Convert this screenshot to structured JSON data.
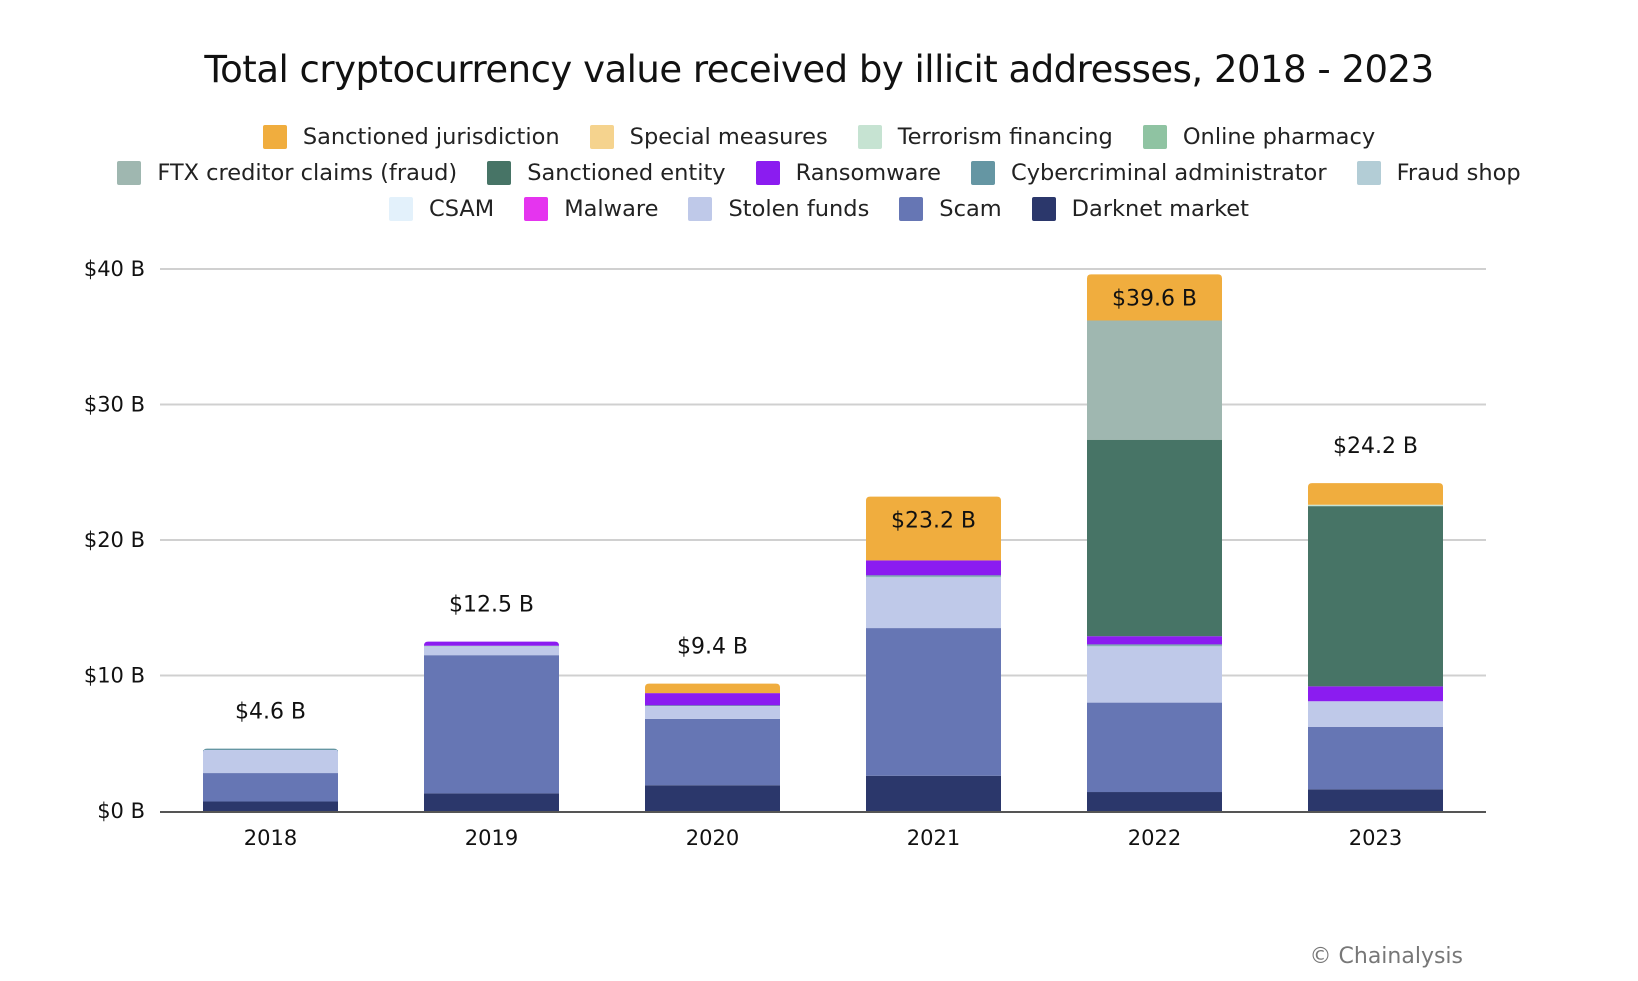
{
  "chart_data": {
    "type": "bar",
    "stacked": true,
    "title": "Total cryptocurrency value received by illicit addresses, 2018 - 2023",
    "xlabel": "",
    "ylabel": "",
    "ylim": [
      0,
      40
    ],
    "yticks": [
      0,
      10,
      20,
      30,
      40
    ],
    "ytick_labels": [
      "$0 B",
      "$10 B",
      "$20 B",
      "$30 B",
      "$40 B"
    ],
    "grid": true,
    "legend_position": "top",
    "categories": [
      "2018",
      "2019",
      "2020",
      "2021",
      "2022",
      "2023"
    ],
    "totals": [
      4.6,
      12.5,
      9.4,
      23.2,
      39.6,
      24.2
    ],
    "total_labels": [
      "$4.6 B",
      "$12.5 B",
      "$9.4 B",
      "$23.2 B",
      "$39.6 B",
      "$24.2 B"
    ],
    "legend_order": [
      "Sanctioned jurisdiction",
      "Special measures",
      "Terrorism financing",
      "Online pharmacy",
      "FTX creditor claims (fraud)",
      "Sanctioned entity",
      "Ransomware",
      "Cybercriminal administrator",
      "Fraud shop",
      "CSAM",
      "Malware",
      "Stolen funds",
      "Scam",
      "Darknet market"
    ],
    "legend_rows": [
      [
        "Sanctioned jurisdiction",
        "Special measures",
        "Terrorism financing",
        "Online pharmacy"
      ],
      [
        "FTX creditor claims (fraud)",
        "Sanctioned entity",
        "Ransomware",
        "Cybercriminal administrator",
        "Fraud shop"
      ],
      [
        "CSAM",
        "Malware",
        "Stolen funds",
        "Scam",
        "Darknet market"
      ]
    ],
    "series": [
      {
        "name": "Darknet market",
        "color": "#2b376b",
        "values": [
          0.7,
          1.3,
          1.9,
          2.6,
          1.4,
          1.6
        ]
      },
      {
        "name": "Scam",
        "color": "#6676b4",
        "values": [
          2.1,
          10.2,
          4.9,
          10.9,
          6.6,
          4.6
        ]
      },
      {
        "name": "Stolen funds",
        "color": "#bfc9e9",
        "values": [
          1.7,
          0.6,
          0.9,
          3.7,
          4.1,
          1.9
        ]
      },
      {
        "name": "Malware",
        "color": "#e534ef",
        "values": [
          0.0,
          0.0,
          0.0,
          0.0,
          0.0,
          0.0
        ]
      },
      {
        "name": "CSAM",
        "color": "#e3f1fb",
        "values": [
          0.0,
          0.0,
          0.0,
          0.0,
          0.0,
          0.0
        ]
      },
      {
        "name": "Fraud shop",
        "color": "#b3cdd6",
        "values": [
          0.0,
          0.1,
          0.05,
          0.1,
          0.1,
          0.0
        ]
      },
      {
        "name": "Cybercriminal administrator",
        "color": "#6596a3",
        "values": [
          0.1,
          0.0,
          0.05,
          0.1,
          0.1,
          0.0
        ]
      },
      {
        "name": "Ransomware",
        "color": "#8b1cf0",
        "values": [
          0.0,
          0.3,
          0.9,
          1.1,
          0.6,
          1.1
        ]
      },
      {
        "name": "Sanctioned entity",
        "color": "#477466",
        "values": [
          0.0,
          0.0,
          0.0,
          0.0,
          14.5,
          13.3
        ]
      },
      {
        "name": "FTX creditor claims (fraud)",
        "color": "#9fb7b0",
        "values": [
          0.0,
          0.0,
          0.0,
          0.0,
          8.8,
          0.0
        ]
      },
      {
        "name": "Online pharmacy",
        "color": "#8fc3a2",
        "values": [
          0.0,
          0.0,
          0.0,
          0.0,
          0.0,
          0.0
        ]
      },
      {
        "name": "Terrorism financing",
        "color": "#c6e3d2",
        "values": [
          0.0,
          0.0,
          0.0,
          0.0,
          0.0,
          0.1
        ]
      },
      {
        "name": "Special measures",
        "color": "#f5d38e",
        "values": [
          0.0,
          0.0,
          0.0,
          0.0,
          0.0,
          0.0
        ]
      },
      {
        "name": "Sanctioned jurisdiction",
        "color": "#f0ad3e",
        "values": [
          0.0,
          0.0,
          0.7,
          4.7,
          3.4,
          1.6
        ]
      }
    ],
    "total_label_inside_bar": [
      false,
      false,
      false,
      true,
      true,
      false
    ]
  },
  "footer": {
    "copyright": "© Chainalysis"
  }
}
